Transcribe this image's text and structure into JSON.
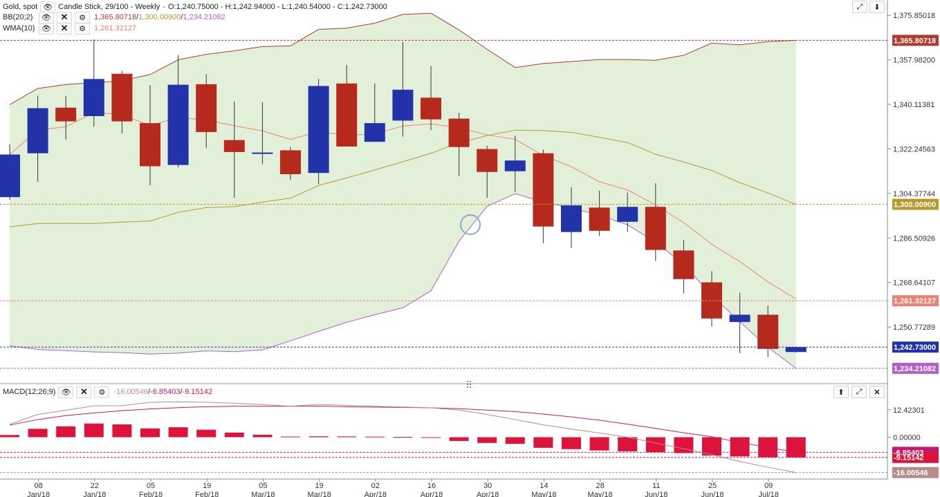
{
  "header": {
    "symbol": "Gold, spot",
    "chart_type": "Candle Stick, 29/100 - Weekly",
    "ohlc": "O:1,240.75000 - H:1,242.94000 - L:1,240.54000 - C:1,242.73000",
    "bb_label": "BB(20;2)",
    "bb_upper": "1,365.80718",
    "bb_mid": "1,300.00900",
    "bb_lower": "1,234.21082",
    "wma_label": "WMA(10)",
    "wma_value": "1,261.32127",
    "macd_label": "MACD(12;26;9)",
    "macd_macd": "-16.00546",
    "macd_signal": "-6.85403",
    "macd_hist": "-9.15142",
    "sep": "/"
  },
  "icons": {
    "eye": "eye-icon",
    "close": "close-icon",
    "gear": "gear-icon",
    "expand": "expand-icon",
    "down": "arrow-down-icon",
    "up": "arrow-up-icon"
  },
  "colors": {
    "up": "#2233aa",
    "down": "#b52a1d",
    "band_fill": "#e2f0da",
    "bb_upper": "#b03a30",
    "bb_mid": "#b8982a",
    "bb_lower": "#b060c8",
    "wma": "#f08070",
    "hist": "#dc143c",
    "macd_line": "#c8186e",
    "signal_line": "#b88c86"
  },
  "chart_data": [
    {
      "type": "candlestick",
      "title": "Gold, spot",
      "y_ticks": [
        "1,375.85018",
        "1,357.98200",
        "1,340.11381",
        "1,322.24563",
        "1,304.37744",
        "1,286.50926",
        "1,268.64107",
        "1,250.77289"
      ],
      "x_ticks": [
        {
          "day": "08",
          "month": "Jan/18",
          "index": 1
        },
        {
          "day": "22",
          "month": "Jan/18",
          "index": 3
        },
        {
          "day": "05",
          "month": "Feb/18",
          "index": 5
        },
        {
          "day": "19",
          "month": "Feb/18",
          "index": 7
        },
        {
          "day": "05",
          "month": "Mar/18",
          "index": 9
        },
        {
          "day": "19",
          "month": "Mar/18",
          "index": 11
        },
        {
          "day": "02",
          "month": "Apr/18",
          "index": 13
        },
        {
          "day": "16",
          "month": "Apr/18",
          "index": 15
        },
        {
          "day": "30",
          "month": "Apr/18",
          "index": 17
        },
        {
          "day": "14",
          "month": "May/18",
          "index": 19
        },
        {
          "day": "28",
          "month": "May/18",
          "index": 21
        },
        {
          "day": "11",
          "month": "Jun/18",
          "index": 23
        },
        {
          "day": "25",
          "month": "Jun/18",
          "index": 25
        },
        {
          "day": "09",
          "month": "Jul/18",
          "index": 27
        }
      ],
      "ylim": [
        1230.0,
        1382.0
      ],
      "candles": [
        {
          "o": 1302.9,
          "h": 1324.1,
          "l": 1301.8,
          "c": 1320.0
        },
        {
          "o": 1320.5,
          "h": 1343.5,
          "l": 1309.0,
          "c": 1338.6
        },
        {
          "o": 1338.8,
          "h": 1343.5,
          "l": 1326.0,
          "c": 1333.3
        },
        {
          "o": 1335.4,
          "h": 1366.2,
          "l": 1331.1,
          "c": 1350.3
        },
        {
          "o": 1352.4,
          "h": 1353.6,
          "l": 1328.5,
          "c": 1333.3
        },
        {
          "o": 1332.6,
          "h": 1347.9,
          "l": 1307.7,
          "c": 1315.3
        },
        {
          "o": 1315.8,
          "h": 1359.9,
          "l": 1314.8,
          "c": 1348.0
        },
        {
          "o": 1348.2,
          "h": 1352.3,
          "l": 1322.6,
          "c": 1329.0
        },
        {
          "o": 1325.8,
          "h": 1341.3,
          "l": 1302.6,
          "c": 1321.0
        },
        {
          "o": 1320.5,
          "h": 1341.0,
          "l": 1316.2,
          "c": 1320.8
        },
        {
          "o": 1321.7,
          "h": 1323.0,
          "l": 1309.9,
          "c": 1312.1
        },
        {
          "o": 1312.6,
          "h": 1350.3,
          "l": 1308.1,
          "c": 1347.5
        },
        {
          "o": 1348.5,
          "h": 1355.9,
          "l": 1323.2,
          "c": 1323.2
        },
        {
          "o": 1325.1,
          "h": 1348.5,
          "l": 1325.1,
          "c": 1332.6
        },
        {
          "o": 1333.6,
          "h": 1365.1,
          "l": 1327.2,
          "c": 1346.0
        },
        {
          "o": 1342.8,
          "h": 1355.5,
          "l": 1329.8,
          "c": 1334.1
        },
        {
          "o": 1334.4,
          "h": 1336.8,
          "l": 1311.4,
          "c": 1323.0
        },
        {
          "o": 1322.2,
          "h": 1323.5,
          "l": 1302.6,
          "c": 1313.0
        },
        {
          "o": 1313.3,
          "h": 1327.6,
          "l": 1305.0,
          "c": 1317.6
        },
        {
          "o": 1320.5,
          "h": 1322.0,
          "l": 1284.4,
          "c": 1291.1
        },
        {
          "o": 1288.9,
          "h": 1306.9,
          "l": 1282.5,
          "c": 1299.6
        },
        {
          "o": 1298.7,
          "h": 1305.5,
          "l": 1287.4,
          "c": 1289.4
        },
        {
          "o": 1293.0,
          "h": 1304.7,
          "l": 1288.9,
          "c": 1299.0
        },
        {
          "o": 1299.0,
          "h": 1308.5,
          "l": 1277.3,
          "c": 1281.7
        },
        {
          "o": 1281.5,
          "h": 1285.8,
          "l": 1264.3,
          "c": 1270.0
        },
        {
          "o": 1268.7,
          "h": 1273.2,
          "l": 1251.0,
          "c": 1254.2
        },
        {
          "o": 1252.8,
          "h": 1264.5,
          "l": 1240.3,
          "c": 1255.7
        },
        {
          "o": 1255.7,
          "h": 1259.4,
          "l": 1238.7,
          "c": 1242.0
        },
        {
          "o": 1240.75,
          "h": 1242.94,
          "l": 1240.54,
          "c": 1242.73
        }
      ],
      "bb_upper": [
        1340.0,
        1346.5,
        1348.1,
        1348.8,
        1349.6,
        1352.1,
        1358.0,
        1360.2,
        1361.6,
        1363.3,
        1363.6,
        1370.2,
        1370.7,
        1372.7,
        1376.2,
        1376.7,
        1370.0,
        1362.2,
        1354.9,
        1356.5,
        1357.3,
        1358.1,
        1358.1,
        1357.8,
        1359.8,
        1364.7,
        1364.0,
        1365.3,
        1365.8
      ],
      "bb_mid": [
        1291.0,
        1292.3,
        1292.4,
        1292.3,
        1292.9,
        1293.3,
        1296.8,
        1298.7,
        1299.1,
        1300.9,
        1302.5,
        1307.6,
        1310.6,
        1313.8,
        1317.1,
        1320.5,
        1324.7,
        1327.6,
        1329.8,
        1329.6,
        1328.9,
        1326.9,
        1324.8,
        1320.1,
        1317.0,
        1313.6,
        1308.7,
        1304.6,
        1300.0
      ],
      "bb_lower": [
        1243.2,
        1241.8,
        1241.3,
        1240.8,
        1240.5,
        1239.9,
        1240.3,
        1241.2,
        1240.9,
        1241.6,
        1245.2,
        1249.0,
        1252.7,
        1255.7,
        1258.5,
        1265.3,
        1285.2,
        1299.2,
        1304.3,
        1300.9,
        1298.6,
        1295.6,
        1291.8,
        1284.9,
        1275.9,
        1263.5,
        1252.9,
        1242.7,
        1234.2
      ]
    },
    {
      "type": "bar",
      "title": "MACD(12;26;9)",
      "y_ticks": [
        "12.42301",
        "0.00000"
      ],
      "ylim": [
        -18.0,
        18.0
      ],
      "histogram": [
        1.0,
        3.8,
        4.9,
        6.2,
        5.8,
        4.0,
        4.5,
        3.4,
        2.1,
        1.1,
        0.3,
        0.4,
        0.35,
        0.25,
        0.15,
        -0.1,
        -1.7,
        -2.6,
        -3.0,
        -4.8,
        -5.4,
        -6.0,
        -6.4,
        -6.8,
        -7.2,
        -8.3,
        -8.7,
        -9.1,
        -9.15
      ],
      "signal": [
        5.5,
        8.0,
        9.8,
        11.0,
        12.0,
        12.8,
        13.4,
        13.8,
        14.0,
        14.0,
        14.0,
        14.1,
        13.8,
        13.6,
        13.5,
        13.3,
        12.9,
        12.3,
        11.6,
        10.5,
        9.2,
        7.7,
        5.9,
        4.0,
        2.0,
        0.2,
        -2.4,
        -4.6,
        -6.85
      ],
      "macd": [
        5.8,
        10.3,
        12.2,
        14.2,
        14.3,
        15.8,
        16.0,
        15.8,
        15.4,
        14.8,
        14.0,
        14.9,
        14.4,
        14.0,
        13.7,
        13.3,
        12.3,
        10.3,
        8.0,
        5.6,
        3.7,
        1.9,
        0.0,
        -2.6,
        -5.2,
        -7.9,
        -11.0,
        -13.6,
        -16.0
      ]
    }
  ]
}
